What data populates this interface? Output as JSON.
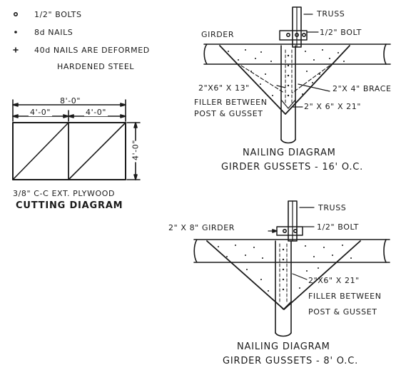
{
  "legend": {
    "bolts": "1/2\" BOLTS",
    "nails_8d": "8d NAILS",
    "nails_40d_line1": "40d NAILS ARE DEFORMED",
    "nails_40d_line2": "HARDENED STEEL"
  },
  "cutting": {
    "overall_width": "8'-0\"",
    "half_left": "4'-0\"",
    "half_right": "4'-0\"",
    "height": "4'-0\"",
    "caption1": "3/8\" C-C EXT. PLYWOOD",
    "caption2": "CUTTING DIAGRAM"
  },
  "top_diagram": {
    "truss": "TRUSS",
    "girder": "GIRDER",
    "bolt": "1/2\" BOLT",
    "brace": "2\"X 4\" BRACE",
    "filler_size": "2\"X6\" X 13\"",
    "filler_line1": "FILLER BETWEEN",
    "filler_line2": "POST & GUSSET",
    "post_size": "2\" X 6\" X 21\"",
    "title1": "NAILING DIAGRAM",
    "title2": "GIRDER GUSSETS - 16' O.C."
  },
  "bottom_diagram": {
    "truss": "TRUSS",
    "girder": "2\" X 8\" GIRDER",
    "bolt": "1/2\" BOLT",
    "filler_size": "2\"X6\" X 21\"",
    "filler_line1": "FILLER BETWEEN",
    "filler_line2": "POST & GUSSET",
    "title1": "NAILING DIAGRAM",
    "title2": "GIRDER GUSSETS - 8' O.C."
  },
  "colors": {
    "ink": "#1a1a1a",
    "paper": "#ffffff"
  }
}
